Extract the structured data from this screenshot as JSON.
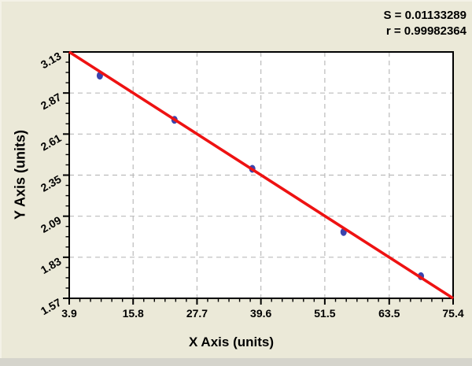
{
  "stats": {
    "s": "S = 0.01133289",
    "r": "r = 0.99982364"
  },
  "chart_data": {
    "type": "scatter",
    "title": "",
    "xlabel": "X Axis (units)",
    "ylabel": "Y Axis (units)",
    "xlim": [
      3.9,
      75.4
    ],
    "ylim": [
      1.57,
      3.13
    ],
    "x_tick_labels": [
      "3.9",
      "15.8",
      "27.7",
      "39.6",
      "51.5",
      "63.5",
      "75.4"
    ],
    "y_tick_labels": [
      "3.13",
      "2.87",
      "2.61",
      "2.35",
      "2.09",
      "1.83",
      "1.57"
    ],
    "x_minor_divisions": 6,
    "y_minor_divisions": 4,
    "grid": true,
    "grid_style": "dashed",
    "legend": "none",
    "points": [
      [
        9.6,
        2.98
      ],
      [
        23.5,
        2.7
      ],
      [
        38.0,
        2.39
      ],
      [
        55.0,
        1.99
      ],
      [
        69.4,
        1.71
      ]
    ],
    "fit_line": {
      "x1": 3.9,
      "y1": 3.13,
      "x2": 75.4,
      "y2": 1.57
    },
    "annotations": [
      "S = 0.01133289",
      "r = 0.99982364"
    ],
    "colors": {
      "background": "#ebe9d8",
      "plot_bg": "#ffffff",
      "line": "#ee1212",
      "point": "#3a44ae",
      "grid": "#bbbbbb",
      "axis": "#000000",
      "text": "#000000"
    }
  }
}
